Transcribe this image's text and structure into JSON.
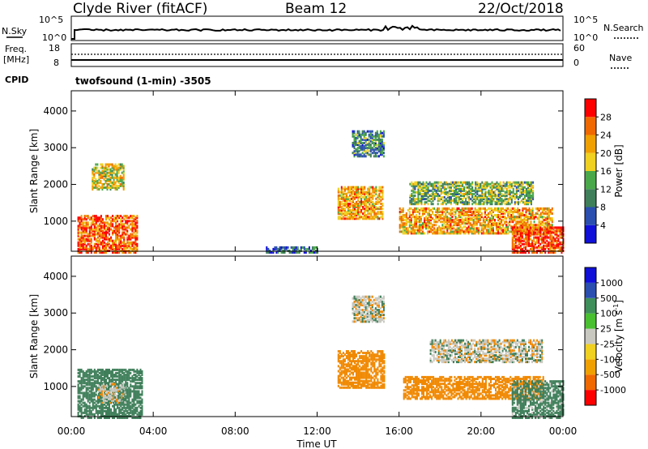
{
  "header": {
    "station": "Clyde River (fitACF)",
    "beam": "Beam 12",
    "date": "22/Oct/2018"
  },
  "noise_panel": {
    "left_label": "N.Sky",
    "right_label": "N.Search",
    "left_ticks": [
      "10^5",
      "10^0"
    ],
    "right_ticks": [
      "10^5",
      "10^0"
    ]
  },
  "freq_panel": {
    "left_label_line1": "Freq.",
    "left_label_line2": "[MHz]",
    "right_label": "Nave",
    "left_ticks": [
      "18",
      "8"
    ],
    "right_ticks": [
      "60",
      "0"
    ]
  },
  "cpid": {
    "label": "CPID",
    "program": "twofsound (1-min) -3505"
  },
  "colors": {
    "power_scale": [
      "#1010d8",
      "#2a4fb0",
      "#3f7f5a",
      "#49a84a",
      "#f0d020",
      "#f0a000",
      "#f06800",
      "#ff0000"
    ],
    "velocity_scale": [
      "#ff0000",
      "#f06800",
      "#f0a000",
      "#f0d020",
      "#c8c8c0",
      "#49c030",
      "#3f8f5a",
      "#2a4fb0",
      "#1010d8"
    ],
    "velocity_pos": "#3f7f5a",
    "velocity_neg": "#f08800",
    "velocity_zero": "#c8c8c0"
  },
  "chart_data": [
    {
      "type": "heatmap",
      "name_role": "power",
      "title": "",
      "xlabel": "",
      "ylabel": "Slant Range [km]",
      "xlim": [
        "00:00",
        "00:00"
      ],
      "ylim": [
        180,
        4550
      ],
      "y_ticks": [
        1000,
        2000,
        3000,
        4000
      ],
      "colorbar": {
        "label": "Power [dB]",
        "range": [
          0,
          32
        ],
        "ticks": [
          "28",
          "24",
          "20",
          "16",
          "12",
          "8",
          "4"
        ]
      },
      "description_regions": [
        {
          "x_hours": [
            0.3,
            3.2
          ],
          "range_km": [
            180,
            1200
          ],
          "power_db": 26
        },
        {
          "x_hours": [
            1.0,
            2.6
          ],
          "range_km": [
            1900,
            2600
          ],
          "power_db": 18
        },
        {
          "x_hours": [
            9.5,
            12.0
          ],
          "range_km": [
            180,
            350
          ],
          "power_db": 8
        },
        {
          "x_hours": [
            13.0,
            15.2
          ],
          "range_km": [
            1100,
            2000
          ],
          "power_db": 22
        },
        {
          "x_hours": [
            13.7,
            15.3
          ],
          "range_km": [
            2800,
            3500
          ],
          "power_db": 10
        },
        {
          "x_hours": [
            16.0,
            23.5
          ],
          "range_km": [
            700,
            1400
          ],
          "power_db": 22
        },
        {
          "x_hours": [
            16.5,
            22.5
          ],
          "range_km": [
            1500,
            2100
          ],
          "power_db": 14
        },
        {
          "x_hours": [
            21.5,
            24.0
          ],
          "range_km": [
            180,
            900
          ],
          "power_db": 28
        }
      ]
    },
    {
      "type": "heatmap",
      "name_role": "velocity",
      "title": "",
      "xlabel": "Time UT",
      "ylabel": "Slant Range [km]",
      "xlim": [
        "00:00",
        "00:00"
      ],
      "ylim": [
        180,
        4550
      ],
      "x_ticks": [
        "00:00",
        "04:00",
        "08:00",
        "12:00",
        "16:00",
        "20:00",
        "00:00"
      ],
      "y_ticks": [
        1000,
        2000,
        3000,
        4000
      ],
      "colorbar": {
        "label": "Velocity [m s",
        "label_sup": "-1",
        "label_close": "]",
        "ticks": [
          "1000",
          "500",
          "100",
          "25",
          "-25",
          "-100",
          "-500",
          "-1000"
        ]
      },
      "description_regions": [
        {
          "x_hours": [
            0.3,
            3.5
          ],
          "range_km": [
            180,
            1500
          ],
          "velocity_ms": 150
        },
        {
          "x_hours": [
            1.3,
            2.6
          ],
          "range_km": [
            600,
            1100
          ],
          "velocity_ms": 0
        },
        {
          "x_hours": [
            13.0,
            15.3
          ],
          "range_km": [
            1000,
            2000
          ],
          "velocity_ms": -200
        },
        {
          "x_hours": [
            13.7,
            15.3
          ],
          "range_km": [
            2800,
            3500
          ],
          "velocity_ms": 0
        },
        {
          "x_hours": [
            16.2,
            23.0
          ],
          "range_km": [
            700,
            1300
          ],
          "velocity_ms": -200
        },
        {
          "x_hours": [
            17.5,
            23.0
          ],
          "range_km": [
            1700,
            2300
          ],
          "velocity_ms": 0
        },
        {
          "x_hours": [
            21.5,
            24.0
          ],
          "range_km": [
            180,
            1200
          ],
          "velocity_ms": 100
        }
      ]
    }
  ]
}
